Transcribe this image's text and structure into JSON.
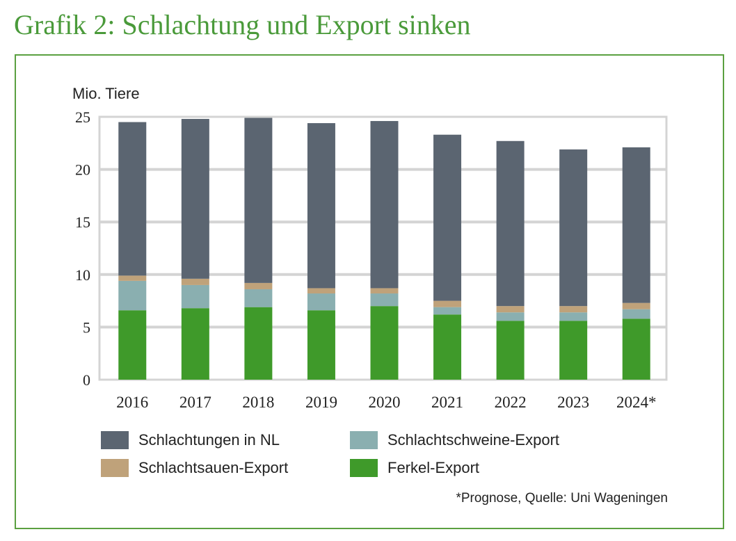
{
  "title": "Grafik 2: Schlachtung und Export sinken",
  "chart_data": {
    "type": "bar",
    "stacked": true,
    "ylabel": "Mio. Tiere",
    "ylim": [
      0,
      25
    ],
    "yticks": [
      0,
      5,
      10,
      15,
      20,
      25
    ],
    "grid": true,
    "legend_position": "bottom",
    "categories": [
      "2016",
      "2017",
      "2018",
      "2019",
      "2020",
      "2021",
      "2022",
      "2023",
      "2024*"
    ],
    "series": [
      {
        "name": "Ferkel-Export",
        "color": "#3f9a2a",
        "values": [
          6.6,
          6.8,
          6.9,
          6.6,
          7.0,
          6.2,
          5.6,
          5.6,
          5.8
        ]
      },
      {
        "name": "Schlachtschweine-Export",
        "color": "#8aafb0",
        "values": [
          2.8,
          2.2,
          1.7,
          1.6,
          1.2,
          0.7,
          0.8,
          0.8,
          0.9
        ]
      },
      {
        "name": "Schlachtsauen-Export",
        "color": "#bfa27a",
        "values": [
          0.5,
          0.6,
          0.6,
          0.5,
          0.5,
          0.6,
          0.6,
          0.6,
          0.6
        ]
      },
      {
        "name": "Schlachtungen in NL",
        "color": "#5b6571",
        "values": [
          14.6,
          15.2,
          15.7,
          15.7,
          15.9,
          15.8,
          15.7,
          14.9,
          14.8
        ]
      }
    ],
    "note": "*Prognose, Quelle: Uni Wageningen"
  }
}
